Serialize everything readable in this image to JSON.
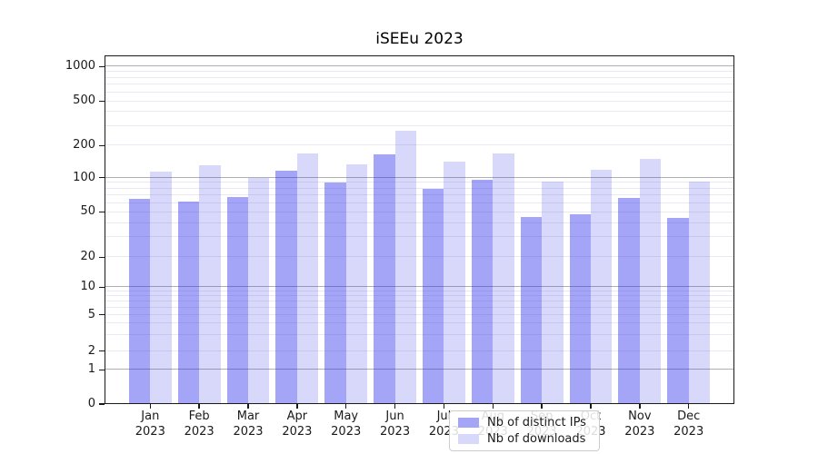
{
  "chart_data": {
    "type": "bar",
    "title": "iSEEu 2023",
    "categories": [
      "Jan",
      "Feb",
      "Mar",
      "Apr",
      "May",
      "Jun",
      "Jul",
      "Aug",
      "Sep",
      "Oct",
      "Nov",
      "Dec"
    ],
    "category_year": "2023",
    "series": [
      {
        "name": "Nb of distinct IPs",
        "values": [
          65,
          62,
          68,
          117,
          91,
          165,
          80,
          96,
          45,
          48,
          67,
          44
        ],
        "color": "rgba(40,40,235,0.42)"
      },
      {
        "name": "Nb of downloads",
        "values": [
          113,
          130,
          100,
          170,
          133,
          270,
          142,
          168,
          93,
          118,
          150,
          93
        ],
        "color": "rgba(40,40,235,0.18)"
      }
    ],
    "yscale": "symlog",
    "ylim": [
      0,
      1000
    ],
    "yticks": [
      0,
      1,
      2,
      5,
      10,
      20,
      50,
      100,
      200,
      500,
      1000
    ],
    "grid": true,
    "legend_position": "lower center"
  },
  "colors": {
    "major_grid": "#b0b0b0",
    "minor_grid": "#e9e9f3",
    "axis": "#1a1a1a",
    "legend_border": "#cccccc",
    "background": "#ffffff"
  }
}
